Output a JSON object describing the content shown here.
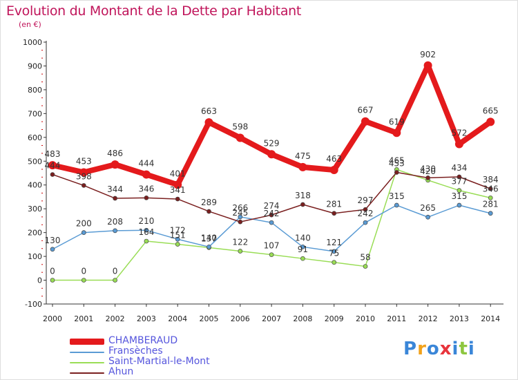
{
  "title": "Evolution du Montant de la Dette par Habitant",
  "subtitle": "(en €)",
  "logo": {
    "text": "Proxiti",
    "letters": [
      {
        "ch": "P",
        "color": "#3a86d8"
      },
      {
        "ch": "r",
        "color": "#f2a21b"
      },
      {
        "ch": "o",
        "color": "#3a86d8"
      },
      {
        "ch": "x",
        "color": "#e8343c"
      },
      {
        "ch": "i",
        "color": "#3a86d8"
      },
      {
        "ch": "t",
        "color": "#8dc63f"
      },
      {
        "ch": "i",
        "color": "#3a86d8"
      }
    ]
  },
  "chart_data": {
    "type": "line",
    "title": "Evolution du Montant de la Dette par Habitant",
    "subtitle": "(en €)",
    "x": [
      "2000",
      "2001",
      "2002",
      "2003",
      "2004",
      "2005",
      "2006",
      "2007",
      "2008",
      "2009",
      "2010",
      "2011",
      "2012",
      "2013",
      "2014"
    ],
    "ylim": [
      -100,
      1000
    ],
    "yticks": [
      -100,
      0,
      100,
      200,
      300,
      400,
      500,
      600,
      700,
      800,
      900,
      1000
    ],
    "grid": false,
    "legend_position": "bottom-left",
    "series": [
      {
        "name": "CHAMBERAUD",
        "color": "#e41a1c",
        "thick": true,
        "values": [
          483,
          453,
          486,
          444,
          401,
          663,
          598,
          529,
          475,
          463,
          667,
          619,
          902,
          572,
          665
        ],
        "labels": [
          "483",
          "453",
          "486",
          "444",
          "401",
          "663",
          "598",
          "529",
          "475",
          "463",
          "667",
          "619",
          "902",
          "572",
          "665"
        ]
      },
      {
        "name": "Fransèches",
        "color": "#5a9bd4",
        "thick": false,
        "values": [
          130,
          200,
          208,
          210,
          172,
          140,
          266,
          242,
          140,
          121,
          242,
          315,
          265,
          315,
          281
        ],
        "labels": [
          "130",
          "200",
          "208",
          "210",
          "172",
          "140",
          "266",
          "242",
          "140",
          "121",
          "242",
          "315",
          "265",
          "315",
          "281"
        ]
      },
      {
        "name": "Saint-Martial-le-Mont",
        "color": "#99dd55",
        "thick": false,
        "values": [
          0,
          0,
          0,
          164,
          151,
          137,
          122,
          107,
          91,
          75,
          58,
          465,
          420,
          377,
          346
        ],
        "labels": [
          "0",
          "0",
          "0",
          "164",
          "151",
          "137",
          "122",
          "107",
          "91",
          "75",
          "58",
          "465",
          "420",
          "377",
          "346"
        ]
      },
      {
        "name": "Ahun",
        "color": "#7a1f1f",
        "thick": false,
        "values": [
          444,
          398,
          344,
          346,
          341,
          289,
          245,
          274,
          318,
          281,
          297,
          453,
          430,
          434,
          384
        ],
        "labels": [
          "444",
          "398",
          "344",
          "346",
          "341",
          "289",
          "245",
          "274",
          "318",
          "281",
          "297",
          "453",
          "430",
          "434",
          "384"
        ]
      }
    ]
  }
}
